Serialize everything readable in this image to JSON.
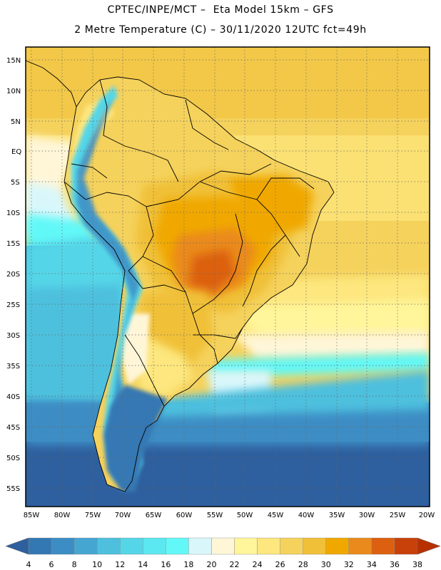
{
  "header": {
    "line1": "CPTEC/INPE/MCT –  Eta Model 15km – GFS",
    "line2": "2 Metre Temperature (C) – 30/11/2020 12UTC fct=49h"
  },
  "map": {
    "lat_labels": [
      "15N",
      "10N",
      "5N",
      "EQ",
      "5S",
      "10S",
      "15S",
      "20S",
      "25S",
      "30S",
      "35S",
      "40S",
      "45S",
      "50S",
      "55S"
    ],
    "lon_labels": [
      "85W",
      "80W",
      "75W",
      "70W",
      "65W",
      "60W",
      "55W",
      "50W",
      "45W",
      "40W",
      "35W",
      "30W",
      "25W",
      "20W"
    ]
  },
  "colorbar": {
    "labels": [
      "4",
      "6",
      "8",
      "10",
      "12",
      "14",
      "16",
      "18",
      "20",
      "22",
      "24",
      "26",
      "28",
      "30",
      "32",
      "34",
      "36",
      "38"
    ],
    "colors": [
      "#2e5f9e",
      "#3478b3",
      "#3c8dc4",
      "#46a6d2",
      "#4ec0de",
      "#55d6e8",
      "#5ce8f0",
      "#62f8f8",
      "#d9f7fb",
      "#fff6d8",
      "#fff59a",
      "#fde77e",
      "#f5d25c",
      "#f0c038",
      "#f0a800",
      "#ea8a1c",
      "#dc6010",
      "#c8400a",
      "#b83000"
    ]
  }
}
